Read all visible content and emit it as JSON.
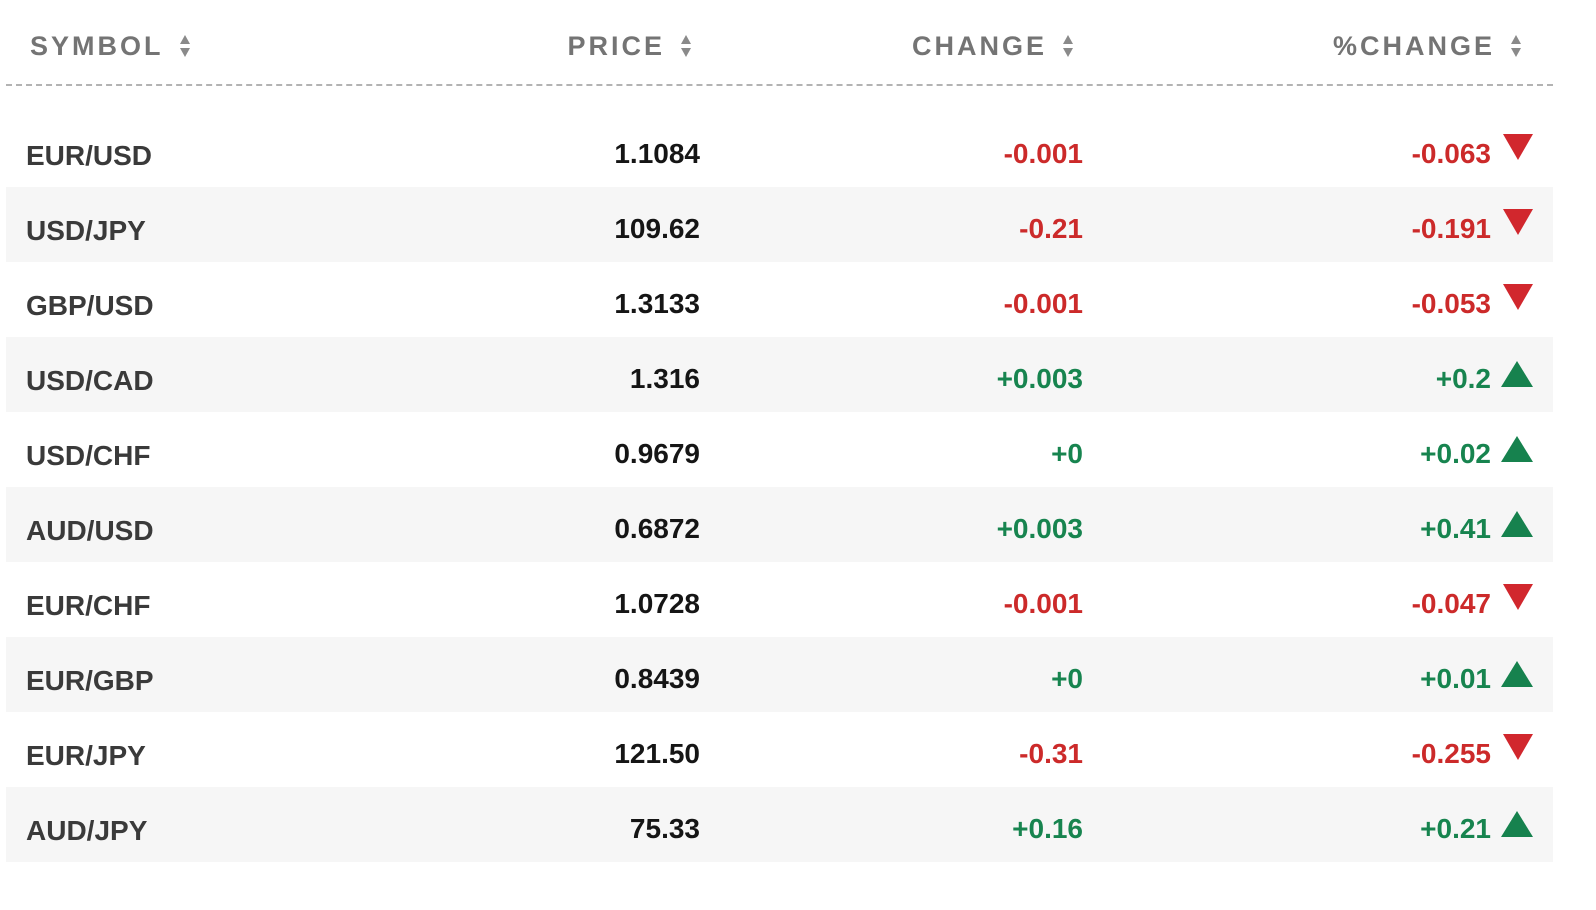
{
  "columns": {
    "symbol": "SYMBOL",
    "price": "PRICE",
    "change": "CHANGE",
    "pct_change": "%CHANGE"
  },
  "colors": {
    "negative": "#cc2a2a",
    "positive": "#17844f"
  },
  "icons": {
    "sort": "sort-icon",
    "down": "triangle-down-icon",
    "up": "triangle-up-icon"
  },
  "rows": [
    {
      "symbol": "EUR/USD",
      "price": "1.1084",
      "change": "-0.001",
      "pct_change": "-0.063",
      "direction": "down"
    },
    {
      "symbol": "USD/JPY",
      "price": "109.62",
      "change": "-0.21",
      "pct_change": "-0.191",
      "direction": "down"
    },
    {
      "symbol": "GBP/USD",
      "price": "1.3133",
      "change": "-0.001",
      "pct_change": "-0.053",
      "direction": "down"
    },
    {
      "symbol": "USD/CAD",
      "price": "1.316",
      "change": "+0.003",
      "pct_change": "+0.2",
      "direction": "up"
    },
    {
      "symbol": "USD/CHF",
      "price": "0.9679",
      "change": "+0",
      "pct_change": "+0.02",
      "direction": "up"
    },
    {
      "symbol": "AUD/USD",
      "price": "0.6872",
      "change": "+0.003",
      "pct_change": "+0.41",
      "direction": "up"
    },
    {
      "symbol": "EUR/CHF",
      "price": "1.0728",
      "change": "-0.001",
      "pct_change": "-0.047",
      "direction": "down"
    },
    {
      "symbol": "EUR/GBP",
      "price": "0.8439",
      "change": "+0",
      "pct_change": "+0.01",
      "direction": "up"
    },
    {
      "symbol": "EUR/JPY",
      "price": "121.50",
      "change": "-0.31",
      "pct_change": "-0.255",
      "direction": "down"
    },
    {
      "symbol": "AUD/JPY",
      "price": "75.33",
      "change": "+0.16",
      "pct_change": "+0.21",
      "direction": "up"
    }
  ]
}
